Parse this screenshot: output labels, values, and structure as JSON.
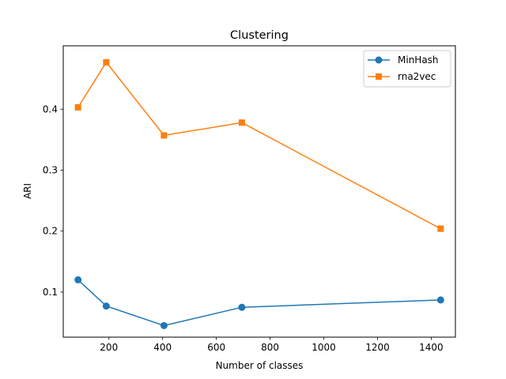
{
  "chart_data": {
    "type": "line",
    "title": "Clustering",
    "xlabel": "Number of classes",
    "ylabel": "ARI",
    "xlim": [
      30,
      1490
    ],
    "ylim": [
      0.026,
      0.504
    ],
    "xticks": [
      200,
      400,
      600,
      800,
      1000,
      1200,
      1400
    ],
    "yticks": [
      0.1,
      0.2,
      0.3,
      0.4
    ],
    "grid": false,
    "legend_position": "top-right",
    "series": [
      {
        "name": "MinHash",
        "color": "#1f77b4",
        "marker": "circle",
        "x": [
          85,
          190,
          405,
          695,
          1435
        ],
        "y": [
          0.12,
          0.077,
          0.045,
          0.075,
          0.087
        ]
      },
      {
        "name": "rna2vec",
        "color": "#ff7f0e",
        "marker": "square",
        "x": [
          85,
          190,
          405,
          695,
          1435
        ],
        "y": [
          0.403,
          0.477,
          0.357,
          0.378,
          0.204
        ]
      }
    ]
  }
}
